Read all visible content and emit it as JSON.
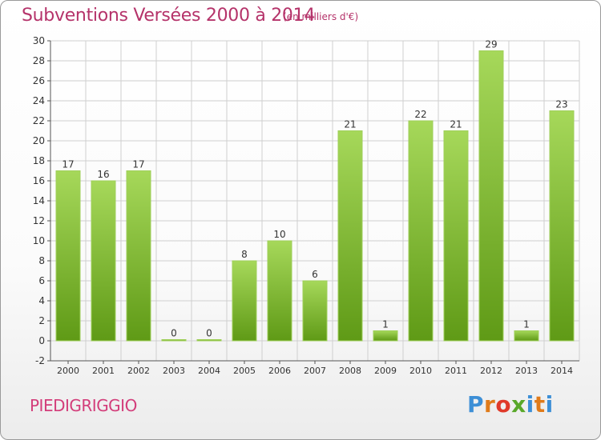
{
  "header": {
    "title": "Subventions Versées 2000 à 2014",
    "unit": "(en milliers d'€)"
  },
  "footer": {
    "commune": "PIEDIGRIGGIO",
    "brand": "Proxiti",
    "brand_colors": [
      "#3d8fd6",
      "#e07b1a",
      "#e03a2a",
      "#59a82a",
      "#3d8fd6",
      "#e07b1a",
      "#3d8fd6"
    ]
  },
  "colors": {
    "title": "#b5336a",
    "bar_light": "#a6d85a",
    "bar_dark": "#5f9a16",
    "grid": "#cfcfcf"
  },
  "chart_data": {
    "type": "bar",
    "title": "Subventions Versées 2000 à 2014",
    "subtitle": "(en milliers d'€)",
    "categories": [
      "2000",
      "2001",
      "2002",
      "2003",
      "2004",
      "2005",
      "2006",
      "2007",
      "2008",
      "2009",
      "2010",
      "2011",
      "2012",
      "2013",
      "2014"
    ],
    "values": [
      17,
      16,
      17,
      0,
      0,
      8,
      10,
      6,
      21,
      1,
      22,
      21,
      29,
      1,
      23
    ],
    "ylim": [
      -2,
      30
    ],
    "yticks": [
      -2,
      0,
      2,
      4,
      6,
      8,
      10,
      12,
      14,
      16,
      18,
      20,
      22,
      24,
      26,
      28,
      30
    ],
    "grid": true,
    "data_labels": true
  }
}
